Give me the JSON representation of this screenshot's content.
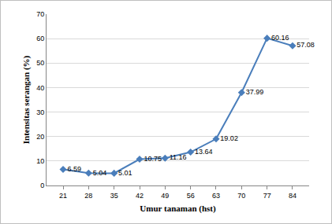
{
  "chart_data": {
    "type": "line",
    "x_label": "Umur tanaman (hst)",
    "y_label": "Intensitas serangan (%)",
    "categories": [
      "21",
      "28",
      "35",
      "42",
      "49",
      "56",
      "63",
      "70",
      "77",
      "84"
    ],
    "values": [
      6.59,
      5.04,
      5.01,
      10.75,
      11.16,
      13.64,
      19.02,
      37.99,
      60.16,
      57.08
    ],
    "color": "#4a7ebb",
    "marker": "diamond",
    "line_style": "solid",
    "ylim": [
      0,
      70
    ],
    "yticks": [
      0,
      10,
      20,
      30,
      40,
      50,
      60,
      70
    ],
    "grid": true,
    "data_labels": true
  }
}
